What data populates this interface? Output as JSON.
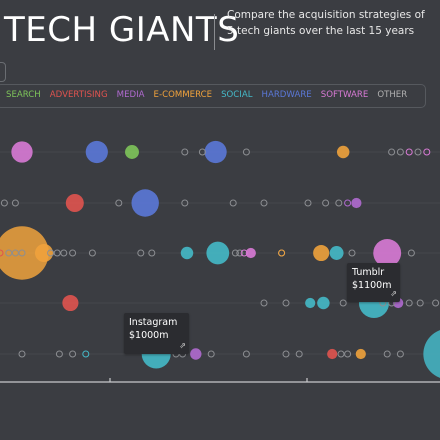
{
  "header": {
    "title": "TECH GIANTS",
    "subtitle": "Compare the acquisition strategies of 5 tech giants over the last 15 years"
  },
  "legend": [
    {
      "label": "SEARCH",
      "color": "#7ec45a"
    },
    {
      "label": "ADVERTISING",
      "color": "#e0534f"
    },
    {
      "label": "MEDIA",
      "color": "#b06ad0"
    },
    {
      "label": "E-COMMERCE",
      "color": "#f0a23c"
    },
    {
      "label": "SOCIAL",
      "color": "#45b9c8"
    },
    {
      "label": "HARDWARE",
      "color": "#5b78d8"
    },
    {
      "label": "SOFTWARE",
      "color": "#d97ad6"
    },
    {
      "label": "OTHER",
      "color": "#b0b0b0"
    }
  ],
  "tooltips": [
    {
      "name": "Instagram",
      "value": "$1000m",
      "icon": "external-link-icon"
    },
    {
      "name": "Tumblr",
      "value": "$1100m",
      "icon": "external-link-icon"
    }
  ],
  "chart_data": {
    "type": "scatter",
    "rows": 7,
    "points": [
      {
        "row": 1,
        "pos": 0.05,
        "size": 0.35,
        "category": "SOFTWARE"
      },
      {
        "row": 1,
        "pos": 0.22,
        "size": 0.38,
        "category": "HARDWARE"
      },
      {
        "row": 1,
        "pos": 0.3,
        "size": 0.15,
        "category": "SEARCH"
      },
      {
        "row": 1,
        "pos": 0.42,
        "size": 0.05,
        "category": "OTHER"
      },
      {
        "row": 1,
        "pos": 0.46,
        "size": 0.05,
        "category": "OTHER"
      },
      {
        "row": 1,
        "pos": 0.49,
        "size": 0.38,
        "category": "HARDWARE"
      },
      {
        "row": 1,
        "pos": 0.56,
        "size": 0.05,
        "category": "OTHER"
      },
      {
        "row": 1,
        "pos": 0.78,
        "size": 0.12,
        "category": "E-COMMERCE"
      },
      {
        "row": 1,
        "pos": 0.89,
        "size": 0.05,
        "category": "OTHER"
      },
      {
        "row": 1,
        "pos": 0.91,
        "size": 0.05,
        "category": "OTHER"
      },
      {
        "row": 1,
        "pos": 0.93,
        "size": 0.05,
        "category": "SOFTWARE"
      },
      {
        "row": 1,
        "pos": 0.95,
        "size": 0.05,
        "category": "OTHER"
      },
      {
        "row": 1,
        "pos": 0.97,
        "size": 0.05,
        "category": "SOFTWARE"
      },
      {
        "row": 2,
        "pos": 0.01,
        "size": 0.05,
        "category": "OTHER"
      },
      {
        "row": 2,
        "pos": 0.035,
        "size": 0.05,
        "category": "OTHER"
      },
      {
        "row": 2,
        "pos": 0.17,
        "size": 0.25,
        "category": "ADVERTISING"
      },
      {
        "row": 2,
        "pos": 0.27,
        "size": 0.05,
        "category": "OTHER"
      },
      {
        "row": 2,
        "pos": 0.33,
        "size": 0.58,
        "category": "HARDWARE"
      },
      {
        "row": 2,
        "pos": 0.42,
        "size": 0.05,
        "category": "OTHER"
      },
      {
        "row": 2,
        "pos": 0.53,
        "size": 0.05,
        "category": "OTHER"
      },
      {
        "row": 2,
        "pos": 0.6,
        "size": 0.05,
        "category": "OTHER"
      },
      {
        "row": 2,
        "pos": 0.7,
        "size": 0.05,
        "category": "OTHER"
      },
      {
        "row": 2,
        "pos": 0.74,
        "size": 0.05,
        "category": "OTHER"
      },
      {
        "row": 2,
        "pos": 0.77,
        "size": 0.05,
        "category": "OTHER"
      },
      {
        "row": 2,
        "pos": 0.79,
        "size": 0.05,
        "category": "MEDIA"
      },
      {
        "row": 2,
        "pos": 0.81,
        "size": 0.08,
        "category": "MEDIA"
      },
      {
        "row": 3,
        "pos": 0.05,
        "size": 2.2,
        "category": "E-COMMERCE"
      },
      {
        "row": 3,
        "pos": 0.0,
        "size": 0.05,
        "category": "ADVERTISING"
      },
      {
        "row": 3,
        "pos": 0.02,
        "size": 0.05,
        "category": "OTHER"
      },
      {
        "row": 3,
        "pos": 0.035,
        "size": 0.05,
        "category": "OTHER"
      },
      {
        "row": 3,
        "pos": 0.05,
        "size": 0.05,
        "category": "OTHER"
      },
      {
        "row": 3,
        "pos": 0.1,
        "size": 0.25,
        "category": "E-COMMERCE"
      },
      {
        "row": 3,
        "pos": 0.115,
        "size": 0.05,
        "category": "OTHER"
      },
      {
        "row": 3,
        "pos": 0.13,
        "size": 0.05,
        "category": "OTHER"
      },
      {
        "row": 3,
        "pos": 0.145,
        "size": 0.05,
        "category": "OTHER"
      },
      {
        "row": 3,
        "pos": 0.165,
        "size": 0.05,
        "category": "OTHER"
      },
      {
        "row": 3,
        "pos": 0.21,
        "size": 0.05,
        "category": "OTHER"
      },
      {
        "row": 3,
        "pos": 0.32,
        "size": 0.05,
        "category": "OTHER"
      },
      {
        "row": 3,
        "pos": 0.345,
        "size": 0.05,
        "category": "OTHER"
      },
      {
        "row": 3,
        "pos": 0.425,
        "size": 0.12,
        "category": "SOCIAL"
      },
      {
        "row": 3,
        "pos": 0.495,
        "size": 0.4,
        "category": "SOCIAL"
      },
      {
        "row": 3,
        "pos": 0.535,
        "size": 0.05,
        "category": "OTHER"
      },
      {
        "row": 3,
        "pos": 0.545,
        "size": 0.05,
        "category": "OTHER"
      },
      {
        "row": 3,
        "pos": 0.555,
        "size": 0.05,
        "category": "SOFTWARE"
      },
      {
        "row": 3,
        "pos": 0.57,
        "size": 0.08,
        "category": "SOFTWARE"
      },
      {
        "row": 3,
        "pos": 0.64,
        "size": 0.05,
        "category": "OTHER"
      },
      {
        "row": 3,
        "pos": 0.64,
        "size": 0.05,
        "category": "E-COMMERCE"
      },
      {
        "row": 3,
        "pos": 0.73,
        "size": 0.2,
        "category": "E-COMMERCE"
      },
      {
        "row": 3,
        "pos": 0.765,
        "size": 0.15,
        "category": "SOCIAL"
      },
      {
        "row": 3,
        "pos": 0.8,
        "size": 0.05,
        "category": "OTHER"
      },
      {
        "row": 3,
        "pos": 0.88,
        "size": 0.6,
        "category": "SOFTWARE"
      },
      {
        "row": 3,
        "pos": 0.935,
        "size": 0.05,
        "category": "OTHER"
      },
      {
        "row": 4,
        "pos": 0.16,
        "size": 0.2,
        "category": "ADVERTISING"
      },
      {
        "row": 4,
        "pos": 0.6,
        "size": 0.05,
        "category": "OTHER"
      },
      {
        "row": 4,
        "pos": 0.65,
        "size": 0.05,
        "category": "OTHER"
      },
      {
        "row": 4,
        "pos": 0.705,
        "size": 0.08,
        "category": "SOCIAL"
      },
      {
        "row": 4,
        "pos": 0.735,
        "size": 0.12,
        "category": "SOCIAL"
      },
      {
        "row": 4,
        "pos": 0.78,
        "size": 0.05,
        "category": "OTHER"
      },
      {
        "row": 4,
        "pos": 0.85,
        "size": 0.7,
        "category": "SOCIAL"
      },
      {
        "row": 4,
        "pos": 0.87,
        "size": 0.05,
        "category": "OTHER"
      },
      {
        "row": 4,
        "pos": 0.89,
        "size": 0.05,
        "category": "OTHER"
      },
      {
        "row": 4,
        "pos": 0.905,
        "size": 0.08,
        "category": "MEDIA"
      },
      {
        "row": 4,
        "pos": 0.93,
        "size": 0.05,
        "category": "OTHER"
      },
      {
        "row": 4,
        "pos": 0.955,
        "size": 0.05,
        "category": "OTHER"
      },
      {
        "row": 4,
        "pos": 0.99,
        "size": 0.05,
        "category": "OTHER"
      },
      {
        "row": 5,
        "pos": 0.05,
        "size": 0.05,
        "category": "OTHER"
      },
      {
        "row": 5,
        "pos": 0.135,
        "size": 0.05,
        "category": "OTHER"
      },
      {
        "row": 5,
        "pos": 0.165,
        "size": 0.05,
        "category": "OTHER"
      },
      {
        "row": 5,
        "pos": 0.195,
        "size": 0.05,
        "category": "SOCIAL"
      },
      {
        "row": 5,
        "pos": 0.355,
        "size": 0.65,
        "category": "SOCIAL"
      },
      {
        "row": 5,
        "pos": 0.4,
        "size": 0.05,
        "category": "OTHER"
      },
      {
        "row": 5,
        "pos": 0.415,
        "size": 0.05,
        "category": "OTHER"
      },
      {
        "row": 5,
        "pos": 0.445,
        "size": 0.1,
        "category": "MEDIA"
      },
      {
        "row": 5,
        "pos": 0.48,
        "size": 0.05,
        "category": "OTHER"
      },
      {
        "row": 5,
        "pos": 0.56,
        "size": 0.05,
        "category": "OTHER"
      },
      {
        "row": 5,
        "pos": 0.65,
        "size": 0.05,
        "category": "OTHER"
      },
      {
        "row": 5,
        "pos": 0.68,
        "size": 0.05,
        "category": "OTHER"
      },
      {
        "row": 5,
        "pos": 0.755,
        "size": 0.08,
        "category": "ADVERTISING"
      },
      {
        "row": 5,
        "pos": 0.775,
        "size": 0.05,
        "category": "OTHER"
      },
      {
        "row": 5,
        "pos": 0.79,
        "size": 0.05,
        "category": "OTHER"
      },
      {
        "row": 5,
        "pos": 0.82,
        "size": 0.08,
        "category": "E-COMMERCE"
      },
      {
        "row": 5,
        "pos": 0.88,
        "size": 0.05,
        "category": "OTHER"
      },
      {
        "row": 5,
        "pos": 0.91,
        "size": 0.05,
        "category": "OTHER"
      },
      {
        "row": 5,
        "pos": 1.02,
        "size": 2.0,
        "category": "SOCIAL"
      }
    ]
  }
}
